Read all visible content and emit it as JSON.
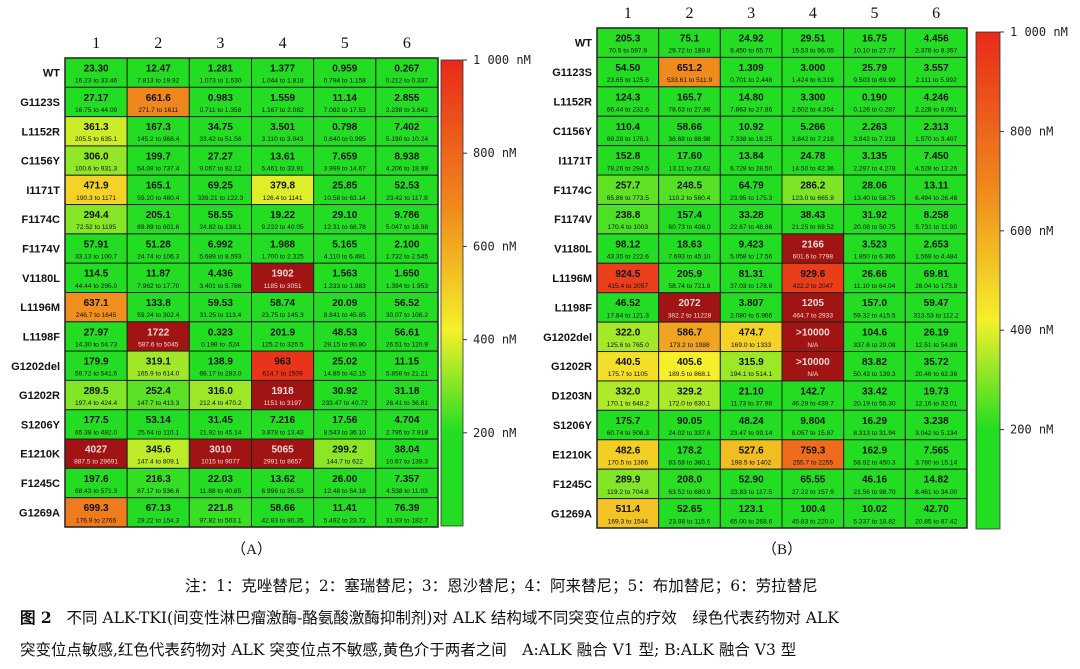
{
  "figure": {
    "note": "注：1：克唑替尼；2：塞瑞替尼；3：恩沙替尼；4：阿来替尼；5：布加替尼；6：劳拉替尼",
    "label": "图 2",
    "title_line1": "不同 ALK-TKI(间变性淋巴瘤激酶-酪氨酸激酶抑制剂)对 ALK 结构域不同突变位点的疗效　绿色代表药物对 ALK",
    "title_line2": "突变位点敏感,红色代表药物对 ALK 突变位点不敏感,黄色介于两者之间　A:ALK 融合 V1 型; B:ALK 融合 V3 型"
  },
  "colors": {
    "green": "#22dd22",
    "yellow": "#f5f02a",
    "orange": "#f08a1c",
    "red": "#e82a1a",
    "dark_red": "#a01414",
    "grid": "#222222"
  },
  "chart_data": [
    {
      "type": "heatmap",
      "panel_label": "（A）",
      "columns": [
        "1",
        "2",
        "3",
        "4",
        "5",
        "6"
      ],
      "rows": [
        "WT",
        "G1123S",
        "L1152R",
        "C1156Y",
        "I1171T",
        "F1174C",
        "F1174V",
        "V1180L",
        "L1196M",
        "L1198F",
        "G1202del",
        "G1202R",
        "S1206Y",
        "E1210K",
        "F1245C",
        "G1269A"
      ],
      "values": [
        [
          23.3,
          12.47,
          1.281,
          1.377,
          0.959,
          0.267
        ],
        [
          27.17,
          661.6,
          0.983,
          1.559,
          11.14,
          2.855
        ],
        [
          361.3,
          167.3,
          34.75,
          3.501,
          0.798,
          7.402
        ],
        [
          306.0,
          199.7,
          27.27,
          13.61,
          7.659,
          8.938
        ],
        [
          471.9,
          165.1,
          69.25,
          379.8,
          25.85,
          52.53
        ],
        [
          294.4,
          205.1,
          58.55,
          19.22,
          29.1,
          9.786
        ],
        [
          57.91,
          51.28,
          6.992,
          1.988,
          5.165,
          2.1
        ],
        [
          114.5,
          11.87,
          4.436,
          1902,
          1.563,
          1.65
        ],
        [
          637.1,
          133.8,
          59.53,
          58.74,
          20.09,
          56.52
        ],
        [
          27.97,
          1722,
          0.323,
          201.9,
          48.53,
          56.61
        ],
        [
          179.9,
          319.1,
          138.9,
          963,
          25.02,
          11.15
        ],
        [
          289.5,
          252.4,
          316.0,
          1918,
          30.92,
          31.18
        ],
        [
          177.5,
          53.14,
          31.45,
          7.216,
          17.56,
          4.704
        ],
        [
          4027,
          345.6,
          3010,
          5065,
          299.2,
          38.04
        ],
        [
          197.6,
          216.3,
          22.03,
          13.62,
          26.0,
          7.357
        ],
        [
          699.3,
          67.13,
          221.8,
          58.66,
          11.41,
          76.39
        ]
      ],
      "value_labels": [
        [
          "23.30",
          "12.47",
          "1.281",
          "1.377",
          "0.959",
          "0.267"
        ],
        [
          "27.17",
          "661.6",
          "0.983",
          "1.559",
          "11.14",
          "2.855"
        ],
        [
          "361.3",
          "167.3",
          "34.75",
          "3.501",
          "0.798",
          "7.402"
        ],
        [
          "306.0",
          "199.7",
          "27.27",
          "13.61",
          "7.659",
          "8.938"
        ],
        [
          "471.9",
          "165.1",
          "69.25",
          "379.8",
          "25.85",
          "52.53"
        ],
        [
          "294.4",
          "205.1",
          "58.55",
          "19.22",
          "29.10",
          "9.786"
        ],
        [
          "57.91",
          "51.28",
          "6.992",
          "1.988",
          "5.165",
          "2.100"
        ],
        [
          "114.5",
          "11.87",
          "4.436",
          "1902",
          "1.563",
          "1.650"
        ],
        [
          "637.1",
          "133.8",
          "59.53",
          "58.74",
          "20.09",
          "56.52"
        ],
        [
          "27.97",
          "1722",
          "0.323",
          "201.9",
          "48.53",
          "56.61"
        ],
        [
          "179.9",
          "319.1",
          "138.9",
          "963",
          "25.02",
          "11.15"
        ],
        [
          "289.5",
          "252.4",
          "316.0",
          "1918",
          "30.92",
          "31.18"
        ],
        [
          "177.5",
          "53.14",
          "31.45",
          "7.216",
          "17.56",
          "4.704"
        ],
        [
          "4027",
          "345.6",
          "3010",
          "5065",
          "299.2",
          "38.04"
        ],
        [
          "197.6",
          "216.3",
          "22.03",
          "13.62",
          "26.00",
          "7.357"
        ],
        [
          "699.3",
          "67.13",
          "221.8",
          "58.66",
          "11.41",
          "76.39"
        ]
      ],
      "ranges": [
        [
          "16.23 to 33.46",
          "7.813 to 19.92",
          "1.073 to 1.530",
          "1.044 to 1.818",
          "0.794 to 1.158",
          "0.212 to 0.337"
        ],
        [
          "16.75 to 44.09",
          "271.7 to 1611",
          "0.711 to 1.358",
          "1.167 to 2.082",
          "7.082 to 17.53",
          "2.238 to 3.642"
        ],
        [
          "205.5 to 635.1",
          "145.2 to 968.4",
          "23.42 to 51.56",
          "3.110 to 3.943",
          "0.640 to 0.995",
          "5.190 to 10.24"
        ],
        [
          "100.6 to 931.3",
          "54.09 to 737.4",
          "9.057 to 82.12",
          "5.461 to 33.91",
          "3.999 to 14.67",
          "4.206 to 18.99"
        ],
        [
          "190.3 to 1171",
          "59.20 to 460.4",
          "339.21 to 122.3",
          "126.4 to 1141",
          "10.58 to 63.14",
          "23.42 to 117.8"
        ],
        [
          "72.52 to 1195",
          "89.89 to 601.6",
          "24.82 to 138.1",
          "9.222 to 40.05",
          "12.31 to 68.78",
          "5.047 to 18.98"
        ],
        [
          "33.13 to 100.7",
          "24.74 to 106.3",
          "5.689 to 8.593",
          "1.700 to 2.325",
          "4.110 to 6.491",
          "1.732 to 2.545"
        ],
        [
          "44.44 to 295.0",
          "7.962 to 17.70",
          "3.401 to 5.786",
          "1185 to 3051",
          "1.233 to 1.983",
          "1.394 to 1.953"
        ],
        [
          "246.7 to 1645",
          "59.24 to 302.4",
          "31.25 to 113.4",
          "23.75 to 145.3",
          "8.841 to 45.65",
          "30.07 to 106.2"
        ],
        [
          "14.30 to 54.73",
          "587.6 to 5045",
          "0.198 to .524",
          "125.2 to 325.5",
          "29.15 to 80.80",
          "26.51 to 120.9"
        ],
        [
          "59.72 to 541.6",
          "165.9 to 614.0",
          "68.17 to 283.0",
          "614.7 to 1509",
          "14.85 to 42.15",
          "5.858 to 21.21"
        ],
        [
          "197.4 to 424.4",
          "147.7 to 413.3",
          "212.4 to 470.2",
          "1151 to 3197",
          "233.47 to 40.72",
          "26.41 to 36.81"
        ],
        [
          "65.38 to 482.0",
          "25.64 to 110.1",
          "21.92 to 45.14",
          "3.878 to 13.43",
          "8.543 to 36.10",
          "2.795 to 7.918"
        ],
        [
          "887.5 to 29691",
          "147.4 to 809.1",
          "1015 to 9077",
          "2991 to 8657",
          "144.7 to 622",
          "10.67 to 139.3"
        ],
        [
          "68.43 to 571.3",
          "87.17 to 536.6",
          "11.88 to 40.85",
          "6.996 to 26.53",
          "12.48 to 54.18",
          "4.538 to 11.93"
        ],
        [
          "176.9 to 2765",
          "29.22 to 154.3",
          "97.82 to 503.1",
          "42.83 to 80.35",
          "5.492 to 23.72",
          "31.93 to 182.7"
        ]
      ],
      "colorbar": {
        "ticks": [
          "1 000 nM",
          "800 nM",
          "600 nM",
          "400 nM",
          "200 nM"
        ],
        "tick_values": [
          1000,
          800,
          600,
          400,
          200
        ],
        "range": [
          0,
          1000
        ]
      }
    },
    {
      "type": "heatmap",
      "panel_label": "（B）",
      "columns": [
        "1",
        "2",
        "3",
        "4",
        "5",
        "6"
      ],
      "rows": [
        "WT",
        "G1123S",
        "L1152R",
        "C1156Y",
        "I1171T",
        "F1174C",
        "F1174V",
        "V1180L",
        "L1196M",
        "L1198F",
        "G1202del",
        "G1202R",
        "D1203N",
        "S1206Y",
        "E1210K",
        "F1245C",
        "G1269A"
      ],
      "values": [
        [
          205.3,
          75.1,
          24.92,
          29.51,
          16.75,
          4.456
        ],
        [
          54.5,
          651.2,
          1.309,
          3.0,
          25.79,
          3.557
        ],
        [
          124.3,
          165.7,
          14.8,
          3.3,
          0.19,
          4.246
        ],
        [
          110.4,
          58.66,
          10.92,
          5.266,
          2.263,
          2.313
        ],
        [
          152.8,
          17.6,
          13.84,
          24.78,
          3.135,
          7.45
        ],
        [
          257.7,
          248.5,
          64.79,
          286.2,
          28.06,
          13.11
        ],
        [
          238.8,
          157.4,
          33.28,
          38.43,
          31.92,
          8.258
        ],
        [
          98.12,
          18.63,
          9.423,
          2166,
          3.523,
          2.653
        ],
        [
          924.5,
          205.9,
          81.31,
          929.6,
          26.66,
          69.81
        ],
        [
          46.52,
          2072,
          3.807,
          1205,
          157.0,
          59.47
        ],
        [
          322.0,
          586.7,
          474.7,
          ">10000",
          104.6,
          26.19
        ],
        [
          440.5,
          405.6,
          315.9,
          ">10000",
          83.82,
          35.72
        ],
        [
          332.0,
          329.2,
          21.1,
          142.7,
          33.42,
          19.73
        ],
        [
          175.7,
          90.05,
          48.24,
          9.804,
          16.29,
          3.238
        ],
        [
          482.6,
          178.2,
          527.6,
          759.3,
          162.9,
          7.565
        ],
        [
          289.9,
          208.0,
          52.9,
          65.55,
          46.16,
          14.82
        ],
        [
          511.4,
          52.65,
          123.1,
          100.4,
          10.02,
          42.7
        ]
      ],
      "value_labels": [
        [
          "205.3",
          "75.1",
          "24.92",
          "29.51",
          "16.75",
          "4.456"
        ],
        [
          "54.50",
          "651.2",
          "1.309",
          "3.000",
          "25.79",
          "3.557"
        ],
        [
          "124.3",
          "165.7",
          "14.80",
          "3.300",
          "0.190",
          "4.246"
        ],
        [
          "110.4",
          "58.66",
          "10.92",
          "5.266",
          "2.263",
          "2.313"
        ],
        [
          "152.8",
          "17.60",
          "13.84",
          "24.78",
          "3.135",
          "7.450"
        ],
        [
          "257.7",
          "248.5",
          "64.79",
          "286.2",
          "28.06",
          "13.11"
        ],
        [
          "238.8",
          "157.4",
          "33.28",
          "38.43",
          "31.92",
          "8.258"
        ],
        [
          "98.12",
          "18.63",
          "9.423",
          "2166",
          "3.523",
          "2.653"
        ],
        [
          "924.5",
          "205.9",
          "81.31",
          "929.6",
          "26.66",
          "69.81"
        ],
        [
          "46.52",
          "2072",
          "3.807",
          "1205",
          "157.0",
          "59.47"
        ],
        [
          "322.0",
          "586.7",
          "474.7",
          ">10000",
          "104.6",
          "26.19"
        ],
        [
          "440.5",
          "405.6",
          "315.9",
          ">10000",
          "83.82",
          "35.72"
        ],
        [
          "332.0",
          "329.2",
          "21.10",
          "142.7",
          "33.42",
          "19.73"
        ],
        [
          "175.7",
          "90.05",
          "48.24",
          "9.804",
          "16.29",
          "3.238"
        ],
        [
          "482.6",
          "178.2",
          "527.6",
          "759.3",
          "162.9",
          "7.565"
        ],
        [
          "289.9",
          "208.0",
          "52.90",
          "65.55",
          "46.16",
          "14.82"
        ],
        [
          "511.4",
          "52.65",
          "123.1",
          "100.4",
          "10.02",
          "42.70"
        ]
      ],
      "ranges": [
        [
          "70.5 to 597.9",
          "29.72 to 189.8",
          "9.450 to 65.70",
          "15.53 to 56.05",
          "10.10 to 27.77",
          "2.376 to 8.357"
        ],
        [
          "23.65 to 125.6",
          "533.61 to 511.9",
          "0.701 to 2.446",
          "1.424 to 6.319",
          "9.503 to 69.99",
          "2.111 to 5.992"
        ],
        [
          "66.44 to 232.6",
          "78.63 to 27.86",
          "7.863 to 27.86",
          "2.502 to 4.354",
          "0.126 to 0.287",
          "2.228 to 8.091"
        ],
        [
          "69.28 to 176.1",
          "38.68 to 88.98",
          "7.338 to 16.25",
          "3.842 to 7.218",
          "3.842 to 7.218",
          "1.570 to 3.407"
        ],
        [
          "79.26 to 294.5",
          "13.11 to 23.62",
          "6.728 to 28.50",
          "14.50 to 42.36",
          "2.297 to 4.278",
          "4.528 to 12.26"
        ],
        [
          "65.86 to 773.5",
          "110.2 to 560.4",
          "23.95 to 175.3",
          "123.0 to 665.8",
          "13.40 to 58.75",
          "6.494 to 26.48"
        ],
        [
          "170.4 to 1003",
          "60.73 to 408.0",
          "22.67 to 48.86",
          "21.25 to 69.52",
          "20.08 to 50.75",
          "5.731 to 11.90"
        ],
        [
          "43.35 to 222.6",
          "7.693 to 45.10",
          "5.058 to 17.56",
          "601.6 to 7798",
          "1.950 to 6.365",
          "1.569 to 4.484"
        ],
        [
          "415.4 to 2057",
          "58.74 to 721.6",
          "37.03 to 178.6",
          "422.2 to 2047",
          "11.10 to 64.04",
          "28.04 to 173.8"
        ],
        [
          "17.84 to 121.3",
          "382.2 to 11228",
          "2.080 to 6.966",
          "464.7 to 2933",
          "59.32 to 415.5",
          "313.53 to 112.2"
        ],
        [
          "125.6 to 765.0",
          "173.2 to 1988",
          "169.0 to 1333",
          "N/A",
          "337.6 to 29.08",
          "12.51 to 54.86"
        ],
        [
          "175.7 to 1105",
          "189.5 to 868.1",
          "194.1 to 514.1",
          "N/A",
          "50.43 to 139.3",
          "20.46 to 62.36"
        ],
        [
          "170.1 to 648.2",
          "172.0 to 630.1",
          "11.73 to 37.98",
          "46.29 to 439.7",
          "20.19 to 55.30",
          "12.16 to 32.01"
        ],
        [
          "60.74 to 508.3",
          "24.02 to 337.6",
          "23.47 to 99.14",
          "6.057 to 15.87",
          "8.313 to 31.94",
          "3.042 to 5.134"
        ],
        [
          "170.5 to 1366",
          "83.58 to 380.1",
          "198.5 to 1402",
          "255.7 to 2255",
          "58.92 to 450.3",
          "3.780 to 15.14"
        ],
        [
          "119.2 to 704.8",
          "63.52 to 680.9",
          "23.83 to 117.5",
          "27.22 to 157.9",
          "21.56 to 98.70",
          "8.461 to 34.00"
        ],
        [
          "169.3 to 1544",
          "23.98 to 115.6",
          "65.00 to 268.6",
          "45.83 to 220.0",
          "5.337 to 18.82",
          "20.85 to 87.42"
        ]
      ],
      "colorbar": {
        "ticks": [
          "1 000 nM",
          "800 nM",
          "600 nM",
          "400 nM",
          "200 nM"
        ],
        "tick_values": [
          1000,
          800,
          600,
          400,
          200
        ],
        "range": [
          0,
          1000
        ]
      }
    }
  ]
}
